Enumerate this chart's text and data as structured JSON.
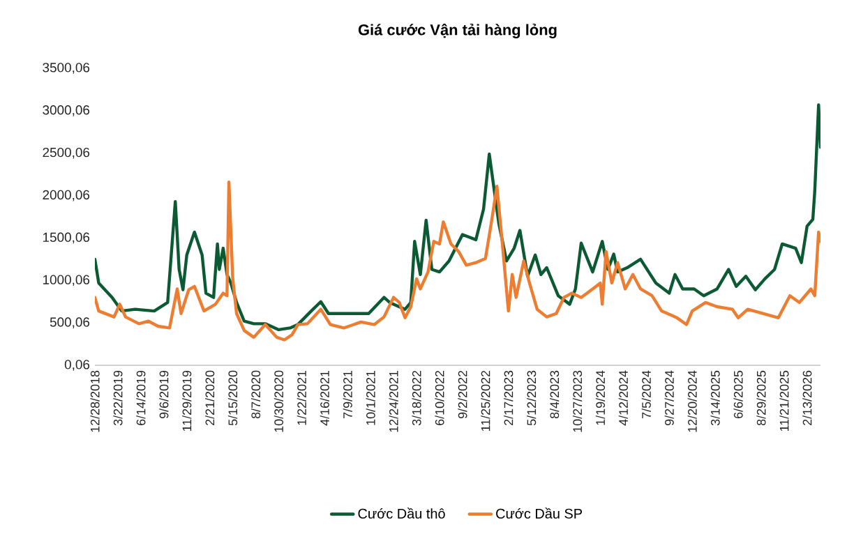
{
  "chart_data": {
    "type": "line",
    "title": "Giá cước Vận tải hàng lỏng",
    "xlim": [
      "2018-12-28",
      "2026-04-03"
    ],
    "xticks": [
      {
        "value": "2018-12-28",
        "label": "12/28/2018"
      },
      {
        "value": "2019-03-22",
        "label": "3/22/2019"
      },
      {
        "value": "2019-06-14",
        "label": "6/14/2019"
      },
      {
        "value": "2019-09-06",
        "label": "9/6/2019"
      },
      {
        "value": "2019-11-29",
        "label": "11/29/2019"
      },
      {
        "value": "2020-02-21",
        "label": "2/21/2020"
      },
      {
        "value": "2020-05-15",
        "label": "5/15/2020"
      },
      {
        "value": "2020-08-07",
        "label": "8/7/2020"
      },
      {
        "value": "2020-10-30",
        "label": "10/30/2020"
      },
      {
        "value": "2021-01-22",
        "label": "1/22/2021"
      },
      {
        "value": "2021-04-16",
        "label": "4/16/2021"
      },
      {
        "value": "2021-07-09",
        "label": "7/9/2021"
      },
      {
        "value": "2021-10-01",
        "label": "10/1/2021"
      },
      {
        "value": "2021-12-24",
        "label": "12/24/2021"
      },
      {
        "value": "2022-03-18",
        "label": "3/18/2022"
      },
      {
        "value": "2022-06-10",
        "label": "6/10/2022"
      },
      {
        "value": "2022-09-02",
        "label": "9/2/2022"
      },
      {
        "value": "2022-11-25",
        "label": "11/25/2022"
      },
      {
        "value": "2023-02-17",
        "label": "2/17/2023"
      },
      {
        "value": "2023-05-12",
        "label": "5/12/2023"
      },
      {
        "value": "2023-08-04",
        "label": "8/4/2023"
      },
      {
        "value": "2023-10-27",
        "label": "10/27/2023"
      },
      {
        "value": "2024-01-19",
        "label": "1/19/2024"
      },
      {
        "value": "2024-04-12",
        "label": "4/12/2024"
      },
      {
        "value": "2024-07-05",
        "label": "7/5/2024"
      },
      {
        "value": "2024-09-27",
        "label": "9/27/2024"
      },
      {
        "value": "2024-12-20",
        "label": "12/20/2024"
      },
      {
        "value": "2025-03-14",
        "label": "3/14/2025"
      },
      {
        "value": "2025-06-06",
        "label": "6/6/2025"
      },
      {
        "value": "2025-08-29",
        "label": "8/29/2025"
      },
      {
        "value": "2025-11-21",
        "label": "11/21/2025"
      },
      {
        "value": "2026-02-13",
        "label": "2/13/2026"
      }
    ],
    "ylim": [
      0.06,
      3500.06
    ],
    "yticks": [
      {
        "value": 0.06,
        "label": "0,06"
      },
      {
        "value": 500.06,
        "label": "500,06"
      },
      {
        "value": 1000.06,
        "label": "1000,06"
      },
      {
        "value": 1500.06,
        "label": "1500,06"
      },
      {
        "value": 2000.06,
        "label": "2000,06"
      },
      {
        "value": 2500.06,
        "label": "2500,06"
      },
      {
        "value": 3000.06,
        "label": "3000,06"
      },
      {
        "value": 3500.06,
        "label": "3500,06"
      }
    ],
    "grid": false,
    "legend": "bottom",
    "marker": "none",
    "line_style": "solid",
    "series": [
      {
        "name": "Cước Dầu thô",
        "color": "#0b5a33",
        "x": [
          "2018-12-28",
          "2019-01-11",
          "2019-03-01",
          "2019-04-05",
          "2019-05-24",
          "2019-08-02",
          "2019-09-20",
          "2019-10-18",
          "2019-11-01",
          "2019-11-15",
          "2019-11-29",
          "2019-12-27",
          "2020-01-24",
          "2020-02-07",
          "2020-03-06",
          "2020-03-20",
          "2020-03-27",
          "2020-04-10",
          "2020-04-24",
          "2020-05-08",
          "2020-05-29",
          "2020-06-26",
          "2020-07-31",
          "2020-09-11",
          "2020-10-30",
          "2020-12-11",
          "2021-01-08",
          "2021-02-26",
          "2021-04-02",
          "2021-04-30",
          "2021-07-02",
          "2021-09-24",
          "2021-11-19",
          "2021-12-10",
          "2022-02-04",
          "2022-02-25",
          "2022-03-11",
          "2022-04-01",
          "2022-04-22",
          "2022-05-13",
          "2022-06-10",
          "2022-07-15",
          "2022-09-02",
          "2022-10-21",
          "2022-11-18",
          "2022-12-09",
          "2022-12-23",
          "2023-01-13",
          "2023-02-10",
          "2023-03-10",
          "2023-03-31",
          "2023-04-28",
          "2023-05-26",
          "2023-06-16",
          "2023-07-07",
          "2023-08-18",
          "2023-09-29",
          "2023-10-20",
          "2023-11-10",
          "2023-12-22",
          "2024-01-26",
          "2024-02-16",
          "2024-03-08",
          "2024-03-22",
          "2024-04-26",
          "2024-06-14",
          "2024-08-09",
          "2024-09-27",
          "2024-10-18",
          "2024-11-15",
          "2024-12-27",
          "2025-01-31",
          "2025-03-21",
          "2025-05-02",
          "2025-05-30",
          "2025-07-04",
          "2025-08-08",
          "2025-09-12",
          "2025-10-17",
          "2025-11-14",
          "2026-01-02",
          "2026-01-23",
          "2026-02-13",
          "2026-03-06",
          "2026-03-13",
          "2026-03-27",
          "2026-04-03"
        ],
        "values": [
          1250,
          970,
          800,
          640,
          660,
          640,
          740,
          1930,
          1130,
          890,
          1300,
          1570,
          1300,
          850,
          800,
          1430,
          1130,
          1380,
          1070,
          970,
          740,
          520,
          490,
          490,
          420,
          440,
          480,
          640,
          750,
          610,
          610,
          610,
          800,
          740,
          660,
          740,
          1460,
          1070,
          1710,
          1130,
          1100,
          1230,
          1540,
          1480,
          1840,
          2490,
          2160,
          1670,
          1230,
          1380,
          1590,
          1050,
          1300,
          1070,
          1150,
          820,
          720,
          900,
          1440,
          1100,
          1460,
          1130,
          1310,
          1100,
          1150,
          1250,
          970,
          850,
          1070,
          900,
          900,
          820,
          900,
          1130,
          930,
          1050,
          890,
          1020,
          1130,
          1430,
          1380,
          1210,
          1640,
          1720,
          2050,
          3070,
          2570
        ]
      },
      {
        "name": "Cước Dầu SP",
        "color": "#ed7d31",
        "x": [
          "2018-12-28",
          "2019-01-11",
          "2019-03-08",
          "2019-03-29",
          "2019-04-19",
          "2019-06-07",
          "2019-07-12",
          "2019-08-16",
          "2019-09-27",
          "2019-10-25",
          "2019-11-08",
          "2019-12-06",
          "2019-12-27",
          "2020-01-31",
          "2020-03-13",
          "2020-04-10",
          "2020-04-24",
          "2020-05-01",
          "2020-05-15",
          "2020-05-29",
          "2020-06-26",
          "2020-07-31",
          "2020-09-11",
          "2020-10-23",
          "2020-11-20",
          "2020-12-18",
          "2021-01-08",
          "2021-02-12",
          "2021-04-02",
          "2021-05-07",
          "2021-06-25",
          "2021-08-27",
          "2021-10-15",
          "2021-11-19",
          "2021-12-24",
          "2022-01-14",
          "2022-02-04",
          "2022-02-25",
          "2022-03-18",
          "2022-04-01",
          "2022-04-29",
          "2022-05-20",
          "2022-06-10",
          "2022-06-24",
          "2022-07-22",
          "2022-08-19",
          "2022-09-16",
          "2022-10-21",
          "2022-11-25",
          "2022-12-16",
          "2023-01-06",
          "2023-01-27",
          "2023-02-17",
          "2023-03-03",
          "2023-03-17",
          "2023-04-14",
          "2023-05-05",
          "2023-06-02",
          "2023-07-07",
          "2023-08-11",
          "2023-09-08",
          "2023-10-06",
          "2023-11-10",
          "2023-12-22",
          "2024-01-19",
          "2024-01-26",
          "2024-02-09",
          "2024-03-01",
          "2024-03-22",
          "2024-04-19",
          "2024-05-17",
          "2024-06-14",
          "2024-07-26",
          "2024-08-30",
          "2024-10-25",
          "2024-11-29",
          "2024-12-20",
          "2025-02-07",
          "2025-03-21",
          "2025-05-16",
          "2025-06-06",
          "2025-07-11",
          "2025-09-05",
          "2025-10-31",
          "2025-12-12",
          "2026-01-16",
          "2026-02-27",
          "2026-03-13",
          "2026-03-27",
          "2026-04-03"
        ],
        "values": [
          800,
          640,
          570,
          720,
          570,
          490,
          520,
          460,
          440,
          900,
          610,
          890,
          930,
          640,
          720,
          850,
          820,
          2160,
          1020,
          610,
          410,
          330,
          480,
          330,
          300,
          360,
          480,
          490,
          660,
          480,
          440,
          510,
          480,
          570,
          800,
          740,
          560,
          690,
          1020,
          900,
          1100,
          1460,
          1430,
          1690,
          1430,
          1340,
          1180,
          1210,
          1260,
          1670,
          2110,
          1390,
          640,
          1070,
          800,
          1230,
          970,
          660,
          570,
          610,
          800,
          850,
          800,
          900,
          970,
          720,
          1340,
          970,
          1210,
          900,
          1070,
          900,
          820,
          640,
          560,
          480,
          640,
          740,
          690,
          660,
          560,
          660,
          610,
          560,
          820,
          740,
          900,
          820,
          1570,
          1460
        ]
      }
    ]
  }
}
